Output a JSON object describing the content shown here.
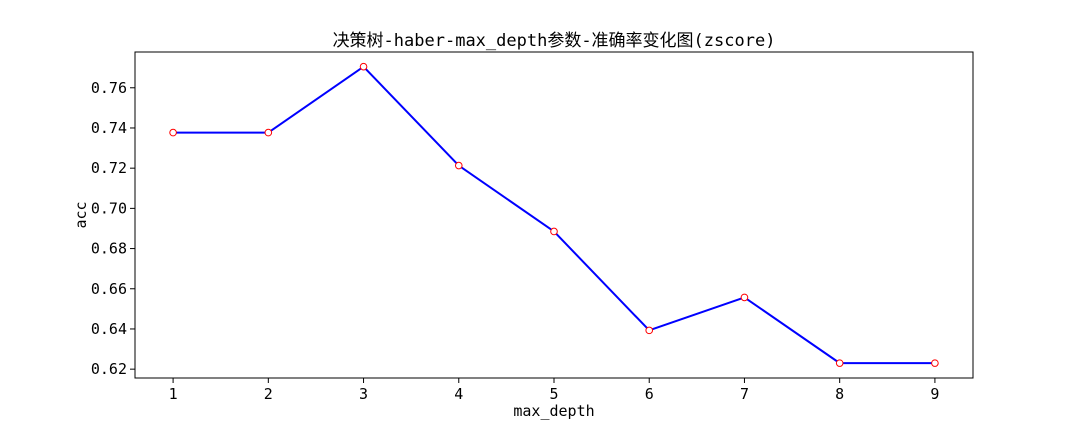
{
  "chart_data": {
    "type": "line",
    "title": "决策树-haber-max_depth参数-准确率变化图(zscore)",
    "xlabel": "max_depth",
    "ylabel": "acc",
    "x": [
      1,
      2,
      3,
      4,
      5,
      6,
      7,
      8,
      9
    ],
    "series": [
      {
        "values": [
          0.7377,
          0.7377,
          0.7705,
          0.7213,
          0.6885,
          0.6393,
          0.6557,
          0.623,
          0.623
        ],
        "line_color": "#0000ff",
        "marker": "circle",
        "marker_edge_color": "#ff0000",
        "marker_face_color": "#ffffff"
      }
    ],
    "xticks": [
      "1",
      "2",
      "3",
      "4",
      "5",
      "6",
      "7",
      "8",
      "9"
    ],
    "yticks": [
      "0.62",
      "0.64",
      "0.66",
      "0.68",
      "0.70",
      "0.72",
      "0.74",
      "0.76"
    ],
    "xlim": [
      0.6,
      9.4
    ],
    "ylim": [
      0.6156,
      0.7778
    ],
    "grid": false,
    "legend": "none"
  }
}
